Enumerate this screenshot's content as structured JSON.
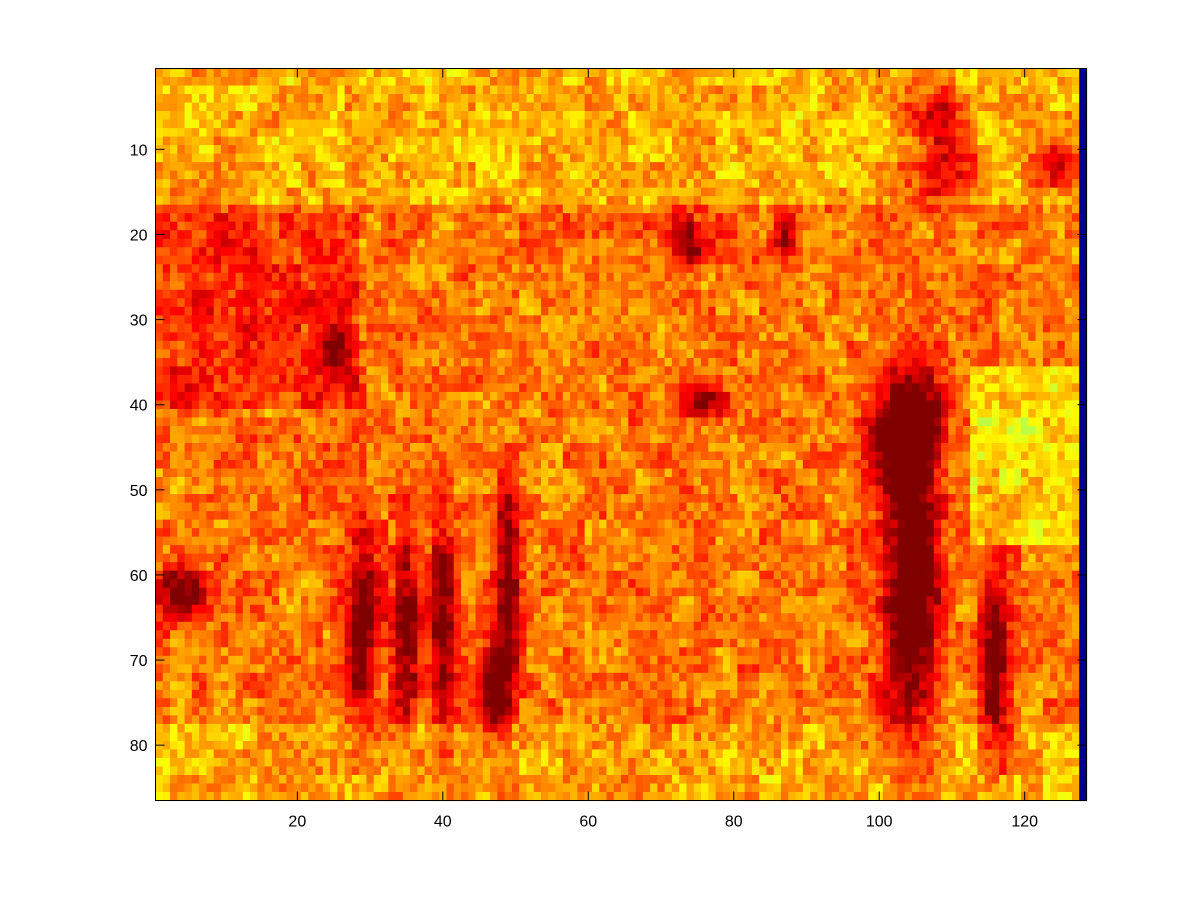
{
  "chart_data": {
    "type": "heatmap",
    "title": "",
    "xlabel": "",
    "ylabel": "",
    "xlim": [
      0.5,
      128.5
    ],
    "ylim": [
      0.5,
      86.5
    ],
    "y_reversed": true,
    "grid": false,
    "colormap": "jet",
    "color_range": "yellow-orange-red dominant, one blue column at x=128",
    "columns": 128,
    "rows": 86,
    "xticks": [
      20,
      40,
      60,
      80,
      100,
      120
    ],
    "yticks": [
      10,
      20,
      30,
      40,
      50,
      60,
      70,
      80
    ],
    "xtick_labels": [
      "20",
      "40",
      "60",
      "80",
      "100",
      "120"
    ],
    "ytick_labels": [
      "10",
      "20",
      "30",
      "40",
      "50",
      "60",
      "70",
      "80"
    ],
    "colors": {
      "axes_edge": "#000000",
      "background": "#ffffff",
      "last_column": "#00008f"
    }
  }
}
